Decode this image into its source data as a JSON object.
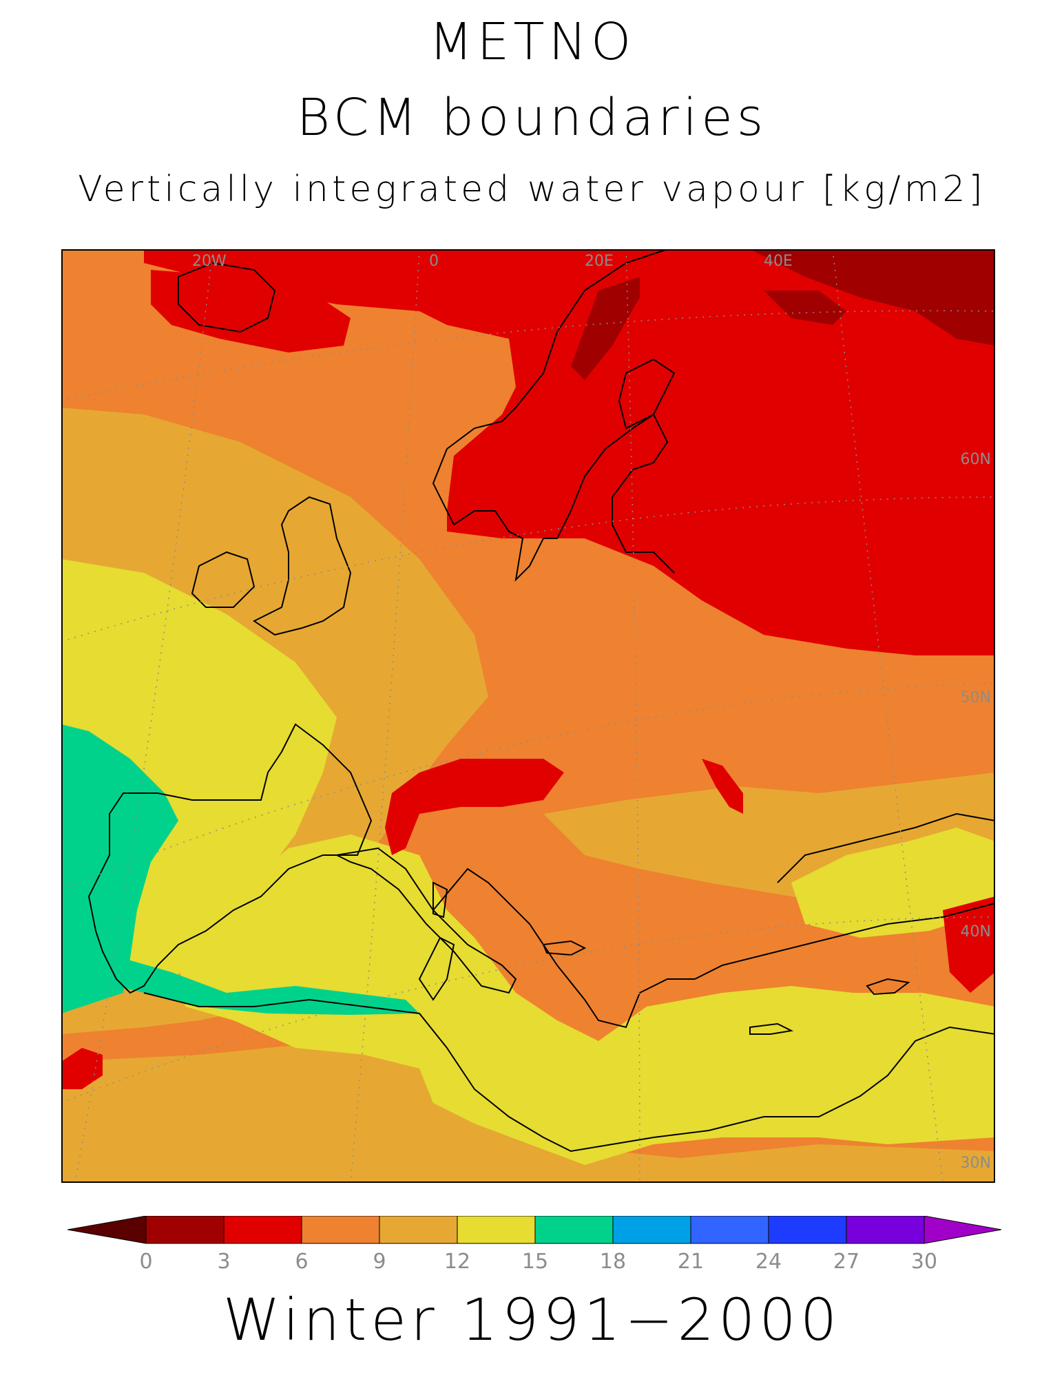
{
  "header": {
    "line1": "METNO",
    "line2": "BCM boundaries",
    "line3": "Vertically integrated water vapour [kg/m2]"
  },
  "footer": {
    "period": "Winter 1991−2000"
  },
  "map": {
    "graticule_labels": {
      "longitudes": [
        "20W",
        "0",
        "20E",
        "40E"
      ],
      "latitudes": [
        "60N",
        "50N",
        "40N",
        "30N"
      ]
    },
    "colors": {
      "c0_3": "#a00000",
      "c3_6": "#e00000",
      "c6_9": "#ee8230",
      "c9_12": "#e6a832",
      "c12_15": "#e6dc32",
      "c15_18": "#00d28c",
      "coast": "#000000",
      "grid": "#8c8c8c"
    }
  },
  "colorbar": {
    "ticks": [
      "0",
      "3",
      "6",
      "9",
      "12",
      "15",
      "18",
      "21",
      "24",
      "27",
      "30"
    ],
    "colors": [
      "#a00000",
      "#e00000",
      "#ee8230",
      "#e6a832",
      "#e6dc32",
      "#00d28c",
      "#00a0e6",
      "#3264ff",
      "#1e3cff",
      "#7800dc"
    ],
    "under_color": "#5a0000",
    "over_color": "#a000c8"
  }
}
